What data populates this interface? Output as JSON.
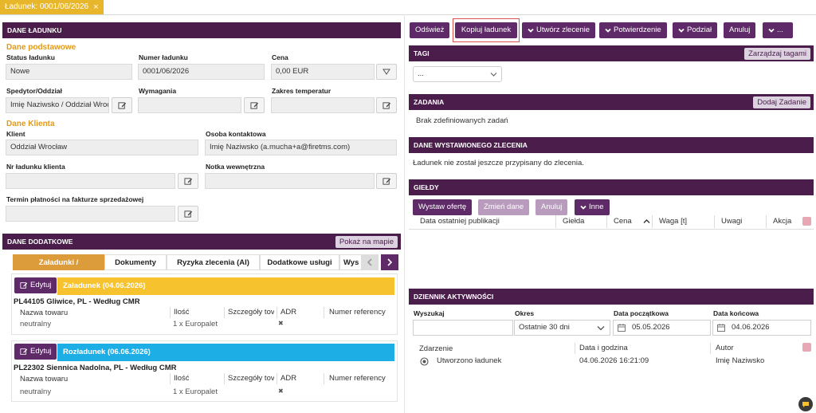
{
  "tab": {
    "title": "Ładunek: 0001/06/2026"
  },
  "left": {
    "dane_ladunku": {
      "header": "DANE ŁADUNKU",
      "sect_podstawowe": "Dane podstawowe",
      "status_label": "Status ładunku",
      "status_value": "Nowe",
      "numer_label": "Numer ładunku",
      "numer_value": "0001/06/2026",
      "cena_label": "Cena",
      "cena_value": "0,00 EUR",
      "spedytor_label": "Spedytor/Oddział",
      "spedytor_value": "Imię Naziwsko / Oddział Wroc",
      "wymagania_label": "Wymagania",
      "zakres_label": "Zakres temperatur",
      "sect_klienta": "Dane Klienta",
      "klient_label": "Klient",
      "klient_value": "Oddział Wrocław",
      "osoba_label": "Osoba kontaktowa",
      "osoba_value": "Imię Naziwsko (a.mucha+a@firetms.com)",
      "nr_klienta_label": "Nr ładunku klienta",
      "notka_label": "Notka wewnętrzna",
      "termin_label": "Termin płatności na fakturze sprzedażowej"
    },
    "dane_dodatkowe": {
      "header": "DANE DODATKOWE",
      "map_button": "Pokaż na mapie",
      "tabs": [
        "Załadunki / Rozładunki",
        "Dokumenty",
        "Ryzyka zlecenia (AI)",
        "Dodatkowe usługi",
        "Wys"
      ],
      "edit_label": "Edytuj",
      "zaladunek": {
        "title": "Załadunek (04.06.2026)",
        "address": "PL44105 Gliwice, PL - Według CMR",
        "cols": [
          "Nazwa towaru",
          "Ilość",
          "Szczegóły tov",
          "ADR",
          "Numer referency"
        ],
        "row": [
          "neutralny",
          "1 x Europalet",
          "",
          "✖",
          ""
        ]
      },
      "rozladunek": {
        "title": "Rozładunek (06.06.2026)",
        "address": "PL22302 Siennica Nadolna, PL - Według CMR",
        "cols": [
          "Nazwa towaru",
          "Ilość",
          "Szczegóły tov",
          "ADR",
          "Numer referency"
        ],
        "row": [
          "neutralny",
          "1 x Europalet",
          "",
          "✖",
          ""
        ]
      }
    }
  },
  "toolbar": {
    "odswiez": "Odśwież",
    "kopiuj": "Kopiuj ładunek",
    "utworz": "Utwórz zlecenie",
    "potwierdzenie": "Potwierdzenie",
    "podzial": "Podział",
    "anuluj": "Anuluj",
    "more": "..."
  },
  "right": {
    "tagi": {
      "header": "TAGI",
      "button": "Zarządzaj tagami",
      "select_value": "..."
    },
    "zadania": {
      "header": "ZADANIA",
      "button": "Dodaj Zadanie",
      "empty": "Brak zdefiniowanych zadań"
    },
    "zlecenie": {
      "header": "DANE WYSTAWIONEGO ZLECENIA",
      "text": "Ładunek nie został jeszcze przypisany do zlecenia."
    },
    "gieldy": {
      "header": "GIEŁDY",
      "buttons": {
        "wystaw": "Wystaw ofertę",
        "zmien": "Zmień dane",
        "anuluj": "Anuluj",
        "inne": "Inne"
      },
      "cols": [
        "Data ostatniej publikacji",
        "Giełda",
        "Cena",
        "Waga [t]",
        "Uwagi",
        "Akcja"
      ]
    },
    "dziennik": {
      "header": "DZIENNIK AKTYWNOŚCI",
      "wyszukaj_label": "Wyszukaj",
      "okres_label": "Okres",
      "okres_value": "Ostatnie 30 dni",
      "start_label": "Data początkowa",
      "start_value": "05.05.2026",
      "end_label": "Data końcowa",
      "end_value": "04.06.2026",
      "cols": [
        "Zdarzenie",
        "Data i godzina",
        "Autor"
      ],
      "row": {
        "event": "Utworzono ładunek",
        "date": "04.06.2026 16:21:09",
        "author": "Imię Naziwsko"
      }
    }
  },
  "colors": {
    "primary": "#5e2a67",
    "header": "#4a1d4b",
    "accent": "#e8b62b",
    "load": "#f6c22d",
    "unload": "#1eaee6"
  }
}
